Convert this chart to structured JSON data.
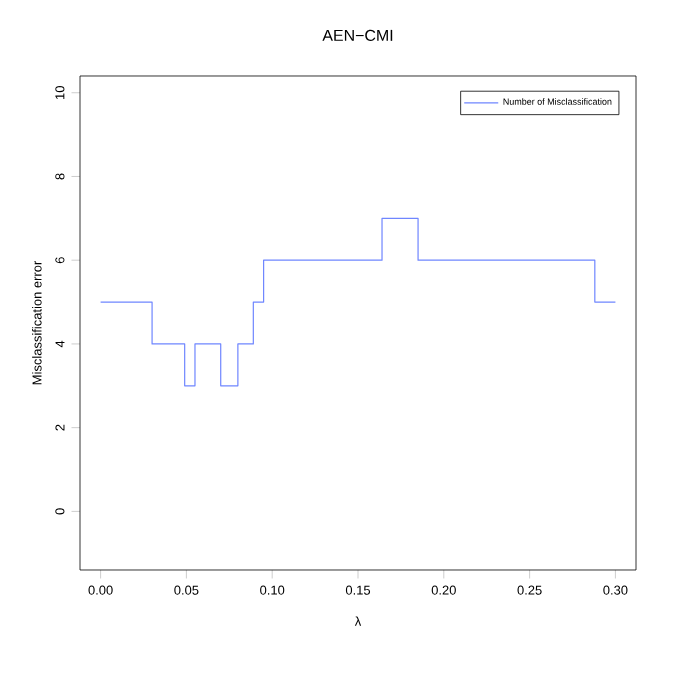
{
  "chart_data": {
    "type": "step",
    "title": "AEN−CMI",
    "xlabel": "λ",
    "ylabel": "Misclassification error",
    "x": [
      0.0,
      0.03,
      0.049,
      0.055,
      0.07,
      0.08,
      0.089,
      0.095,
      0.164,
      0.185,
      0.288,
      0.3
    ],
    "series": [
      {
        "name": "Number of Misclassification",
        "color": "#6f86ff",
        "values": [
          5,
          4,
          3,
          4,
          3,
          4,
          5,
          6,
          7,
          6,
          5,
          5
        ]
      }
    ],
    "xlim": [
      -0.012,
      0.312
    ],
    "ylim": [
      -1.4,
      10.4
    ],
    "xticks": [
      {
        "value": 0.0,
        "label": "0.00"
      },
      {
        "value": 0.05,
        "label": "0.05"
      },
      {
        "value": 0.1,
        "label": "0.10"
      },
      {
        "value": 0.15,
        "label": "0.15"
      },
      {
        "value": 0.2,
        "label": "0.20"
      },
      {
        "value": 0.25,
        "label": "0.25"
      },
      {
        "value": 0.3,
        "label": "0.30"
      }
    ],
    "yticks": [
      0,
      2,
      4,
      6,
      8,
      10
    ],
    "legend": "top right",
    "grid": false,
    "marker": "none",
    "line_style": "solid"
  }
}
